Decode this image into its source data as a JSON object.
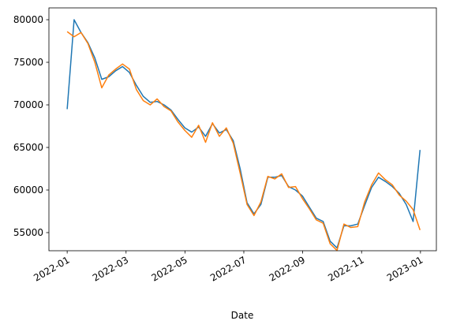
{
  "chart_data": {
    "type": "line",
    "x_label": "Date",
    "x": [
      0,
      0.235,
      0.47,
      0.705,
      0.94,
      1.175,
      1.41,
      1.645,
      1.88,
      2.115,
      2.35,
      2.585,
      2.82,
      3.055,
      3.29,
      3.525,
      3.76,
      3.995,
      4.23,
      4.465,
      4.7,
      4.935,
      5.17,
      5.405,
      5.64,
      5.875,
      6.11,
      6.345,
      6.58,
      6.815,
      7.05,
      7.285,
      7.52,
      7.755,
      7.99,
      8.225,
      8.46,
      8.695,
      8.93,
      9.165,
      9.4,
      9.635,
      9.87,
      10.105,
      10.34,
      10.575,
      10.81,
      11.045,
      11.28,
      11.515,
      11.75,
      11.985
    ],
    "series": [
      {
        "color": "#1f77b4",
        "values": [
          69500,
          80000,
          78500,
          77300,
          75500,
          73000,
          73300,
          74000,
          74500,
          73800,
          72300,
          71000,
          70300,
          70400,
          70000,
          69400,
          68300,
          67300,
          66800,
          67400,
          66300,
          67800,
          66700,
          67100,
          65800,
          62500,
          58500,
          57200,
          58300,
          61500,
          61500,
          61700,
          60400,
          60000,
          59300,
          58000,
          56700,
          56300,
          54000,
          53200,
          55800,
          55800,
          56000,
          58200,
          60300,
          61500,
          61000,
          60400,
          59600,
          58300,
          56300,
          64700
        ]
      },
      {
        "color": "#ff7f0e",
        "values": [
          78600,
          78000,
          78500,
          77200,
          75000,
          72000,
          73500,
          74200,
          74800,
          74200,
          71800,
          70500,
          70000,
          70700,
          69800,
          69300,
          68000,
          67000,
          66200,
          67600,
          65600,
          67900,
          66300,
          67300,
          65500,
          62000,
          58300,
          57000,
          58600,
          61600,
          61300,
          61900,
          60300,
          60400,
          59000,
          57800,
          56500,
          56100,
          53700,
          52900,
          56000,
          55600,
          55700,
          58600,
          60600,
          62000,
          61200,
          60600,
          59400,
          58700,
          57700,
          55300
        ]
      }
    ],
    "xlim": [
      -0.62,
      12.54
    ],
    "xticks": [
      {
        "value": 0,
        "label": "2022-01"
      },
      {
        "value": 2,
        "label": "2022-03"
      },
      {
        "value": 4,
        "label": "2022-05"
      },
      {
        "value": 6,
        "label": "2022-07"
      },
      {
        "value": 8,
        "label": "2022-09"
      },
      {
        "value": 10,
        "label": "2022-11"
      },
      {
        "value": 12,
        "label": "2023-01"
      }
    ],
    "ylim": [
      52870,
      81390
    ],
    "yticks": [
      55000,
      60000,
      65000,
      70000,
      75000,
      80000
    ],
    "grid": false
  }
}
